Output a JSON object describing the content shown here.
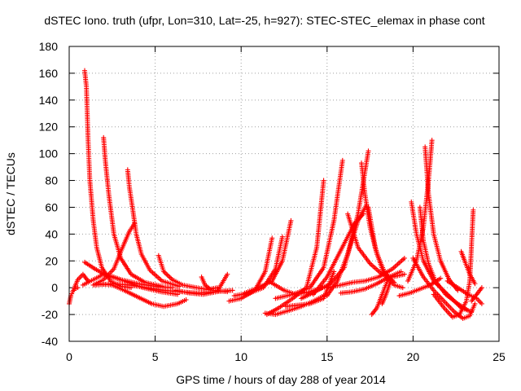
{
  "chart_data": {
    "type": "scatter",
    "title": "dSTEC Iono. truth (ufpr, Lon=310, Lat=-25, h=927): STEC-STEC_elemax in phase cont",
    "xlabel": "GPS time / hours of day 288 of year 2014",
    "ylabel": "dSTEC  / TECUs",
    "xlim": [
      0,
      25
    ],
    "ylim": [
      -40,
      180
    ],
    "xticks": [
      0,
      5,
      10,
      15,
      20,
      25
    ],
    "yticks": [
      -40,
      -20,
      0,
      20,
      40,
      60,
      80,
      100,
      120,
      140,
      160,
      180
    ],
    "grid": true,
    "marker": "+",
    "color": "#ff0000",
    "series": [
      {
        "x": [
          0.0,
          0.1,
          0.2,
          0.3,
          0.5
        ],
        "y": [
          -12,
          -6,
          -3,
          -1,
          0
        ]
      },
      {
        "x": [
          0.3,
          0.5,
          0.8,
          1.1
        ],
        "y": [
          0,
          6,
          10,
          5
        ]
      },
      {
        "x": [
          0.9,
          1.0,
          1.1,
          1.2,
          1.4,
          1.6,
          1.9,
          2.4,
          3.0,
          3.6
        ],
        "y": [
          162,
          150,
          110,
          80,
          50,
          30,
          15,
          5,
          1,
          0
        ]
      },
      {
        "x": [
          2.0,
          2.1,
          2.3,
          2.6,
          3.0,
          3.6,
          4.4,
          5.4
        ],
        "y": [
          112,
          95,
          70,
          40,
          22,
          10,
          4,
          1
        ]
      },
      {
        "x": [
          3.4,
          3.5,
          3.7,
          3.9,
          4.2,
          4.7,
          5.4,
          6.4
        ],
        "y": [
          88,
          75,
          58,
          40,
          25,
          13,
          5,
          1
        ]
      },
      {
        "x": [
          0.9,
          1.5,
          2.2,
          3.0,
          4.0,
          5.0,
          6.0
        ],
        "y": [
          19,
          14,
          9,
          6,
          3,
          1,
          0
        ]
      },
      {
        "x": [
          0.8,
          1.4,
          2.0,
          2.6,
          3.4,
          4.3,
          5.3,
          6.3
        ],
        "y": [
          2,
          6,
          10,
          8,
          4,
          0,
          -3,
          -5
        ]
      },
      {
        "x": [
          1.4,
          2.0,
          2.6,
          3.1,
          3.5,
          3.8
        ],
        "y": [
          2,
          6,
          14,
          30,
          42,
          48
        ]
      },
      {
        "x": [
          1.7,
          2.5,
          3.2,
          4.0,
          4.8,
          5.5,
          6.3,
          6.8
        ],
        "y": [
          3,
          2,
          -2,
          -7,
          -12,
          -14,
          -12,
          -9
        ]
      },
      {
        "x": [
          1.5,
          2.5,
          3.5,
          4.5,
          5.5,
          6.5,
          7.5,
          8.5,
          9.5
        ],
        "y": [
          2,
          3,
          2,
          0,
          -2,
          -3,
          -4,
          -3,
          -2
        ]
      },
      {
        "x": [
          5.2,
          5.5,
          6.0,
          6.6,
          7.4,
          8.4,
          9.2
        ],
        "y": [
          24,
          12,
          6,
          2,
          0,
          -2,
          -3
        ]
      },
      {
        "x": [
          6.2,
          7.0,
          7.8,
          8.6,
          9.2
        ],
        "y": [
          -2,
          -4,
          -5,
          -3,
          10
        ]
      },
      {
        "x": [
          7.7,
          7.9,
          8.2,
          8.6
        ],
        "y": [
          8,
          2,
          -1,
          0
        ]
      },
      {
        "x": [
          9.3,
          10.0,
          10.8,
          11.4,
          11.8
        ],
        "y": [
          -10,
          -8,
          -2,
          12,
          37
        ]
      },
      {
        "x": [
          9.6,
          10.5,
          11.3,
          12.0,
          12.4
        ],
        "y": [
          -6,
          -4,
          0,
          14,
          38
        ]
      },
      {
        "x": [
          10.2,
          11.0,
          11.8,
          12.4,
          12.9
        ],
        "y": [
          -4,
          0,
          5,
          20,
          50
        ]
      },
      {
        "x": [
          11.4,
          12.0,
          12.8,
          13.5,
          14.2,
          14.8
        ],
        "y": [
          -19,
          -20,
          -17,
          -14,
          -10,
          -6
        ]
      },
      {
        "x": [
          11.5,
          12.2,
          13.0,
          13.8,
          14.4,
          14.8
        ],
        "y": [
          -20,
          -15,
          -8,
          0,
          30,
          80
        ]
      },
      {
        "x": [
          12.0,
          13.0,
          14.0,
          14.8,
          15.4,
          15.9
        ],
        "y": [
          -8,
          -5,
          0,
          15,
          50,
          95
        ]
      },
      {
        "x": [
          12.6,
          13.3,
          14.0,
          14.8,
          15.4
        ],
        "y": [
          -14,
          -13,
          -12,
          -8,
          12
        ]
      },
      {
        "x": [
          11.6,
          12.5,
          13.2,
          14.0,
          14.7
        ],
        "y": [
          5,
          -2,
          -5,
          -3,
          0
        ]
      },
      {
        "x": [
          13.5,
          14.3,
          15.2,
          16.0,
          16.8,
          17.4
        ],
        "y": [
          -8,
          -3,
          3,
          15,
          55,
          102
        ]
      },
      {
        "x": [
          15.0,
          15.6,
          16.2,
          16.8,
          17.3
        ],
        "y": [
          -6,
          5,
          25,
          50,
          62
        ]
      },
      {
        "x": [
          14.2,
          15.0,
          15.8,
          16.6,
          17.1
        ],
        "y": [
          -5,
          8,
          28,
          48,
          55
        ]
      },
      {
        "x": [
          17.0,
          17.2,
          17.5,
          17.9,
          18.4,
          18.9
        ],
        "y": [
          93,
          70,
          45,
          25,
          10,
          4
        ]
      },
      {
        "x": [
          17.4,
          17.8,
          18.3,
          18.9,
          19.4
        ],
        "y": [
          60,
          30,
          10,
          2,
          0
        ]
      },
      {
        "x": [
          17.6,
          17.9,
          18.2,
          18.6
        ],
        "y": [
          -20,
          -15,
          -5,
          8
        ]
      },
      {
        "x": [
          15.8,
          16.5,
          17.2,
          17.9,
          18.6,
          19.3
        ],
        "y": [
          -4,
          -3,
          -1,
          3,
          8,
          12
        ]
      },
      {
        "x": [
          15.0,
          15.8,
          16.5,
          17.2,
          18.0,
          18.8,
          19.5
        ],
        "y": [
          0,
          2,
          4,
          5,
          8,
          14,
          22
        ]
      },
      {
        "x": [
          16.2,
          16.8,
          17.5,
          18.2,
          18.8,
          19.5
        ],
        "y": [
          55,
          30,
          18,
          10,
          8,
          10
        ]
      },
      {
        "x": [
          18.2,
          18.4,
          18.7
        ],
        "y": [
          -12,
          -6,
          5
        ]
      },
      {
        "x": [
          19.9,
          20.2,
          20.6,
          21.2,
          22.0,
          22.8,
          23.4
        ],
        "y": [
          64,
          40,
          20,
          5,
          -5,
          -15,
          -18
        ]
      },
      {
        "x": [
          20.4,
          20.6,
          20.9,
          21.3,
          21.9,
          22.6,
          23.2
        ],
        "y": [
          60,
          35,
          18,
          5,
          -5,
          -12,
          -17
        ]
      },
      {
        "x": [
          20.7,
          20.9,
          21.2,
          21.6,
          22.1,
          22.6
        ],
        "y": [
          105,
          70,
          40,
          20,
          6,
          -2
        ]
      },
      {
        "x": [
          19.7,
          20.2,
          20.6,
          20.9,
          21.1
        ],
        "y": [
          5,
          20,
          45,
          80,
          110
        ]
      },
      {
        "x": [
          19.2,
          19.8,
          20.4,
          21.0,
          21.6
        ],
        "y": [
          -6,
          -4,
          -1,
          2,
          7
        ]
      },
      {
        "x": [
          20.0,
          20.6,
          21.2,
          21.8,
          22.4,
          22.9,
          23.3,
          23.6
        ],
        "y": [
          22,
          8,
          -2,
          -10,
          -18,
          -23,
          -21,
          -12
        ]
      },
      {
        "x": [
          21.2,
          21.8,
          22.3,
          22.7,
          23.1,
          23.3,
          23.5
        ],
        "y": [
          -5,
          -15,
          -22,
          -20,
          -10,
          5,
          58
        ]
      },
      {
        "x": [
          22.8,
          23.0,
          23.3,
          23.6
        ],
        "y": [
          27,
          20,
          10,
          3
        ]
      },
      {
        "x": [
          22.0,
          22.6,
          23.2,
          23.7,
          24.0
        ],
        "y": [
          5,
          0,
          -5,
          -8,
          -12
        ]
      },
      {
        "x": [
          23.4,
          23.7,
          24.0
        ],
        "y": [
          -10,
          -5,
          0
        ]
      }
    ]
  }
}
